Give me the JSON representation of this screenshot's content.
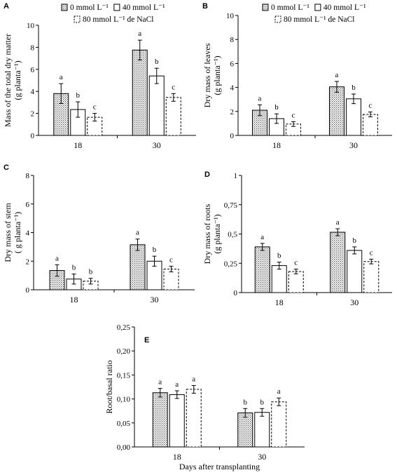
{
  "chart_data": [
    {
      "id": "A",
      "type": "bar",
      "panel_label": "A",
      "ylabel": "Mass of the total dry matter (g planta⁻¹)",
      "ylabel_lines": [
        "Mass of the total dry matter",
        "(g planta⁻¹)"
      ],
      "xlabel": "",
      "ylim": [
        0,
        10
      ],
      "yticks": [
        "0",
        "2",
        "4",
        "6",
        "8",
        "10"
      ],
      "ytick_values": [
        0,
        2,
        4,
        6,
        8,
        10
      ],
      "categories": [
        "18",
        "30"
      ],
      "legend_lines": [
        [
          "0 mmol L⁻¹",
          "40 mmol L⁻¹"
        ],
        [
          "80 mmol L⁻¹ de NaCl"
        ]
      ],
      "series": [
        {
          "name": "0 mmol L⁻¹",
          "values": [
            3.8,
            7.75
          ],
          "errors": [
            0.9,
            0.9
          ],
          "letters": [
            "a",
            "a"
          ]
        },
        {
          "name": "40 mmol L⁻¹",
          "values": [
            2.35,
            5.4
          ],
          "errors": [
            0.7,
            0.7
          ],
          "letters": [
            "b",
            "b"
          ]
        },
        {
          "name": "80 mmol L⁻¹ de NaCl",
          "values": [
            1.65,
            3.45
          ],
          "errors": [
            0.35,
            0.35
          ],
          "letters": [
            "c",
            "c"
          ]
        }
      ]
    },
    {
      "id": "B",
      "type": "bar",
      "panel_label": "B",
      "ylabel": "Dry mass of leaves (g planta⁻¹)",
      "ylabel_lines": [
        "Dry mass of leaves",
        "(g planta⁻¹)"
      ],
      "xlabel": "",
      "ylim": [
        0,
        10
      ],
      "yticks": [
        "0",
        "2",
        "4",
        "6",
        "8",
        "10"
      ],
      "ytick_values": [
        0,
        2,
        4,
        6,
        8,
        10
      ],
      "categories": [
        "18",
        "30"
      ],
      "legend_lines": [
        [
          "0 mmol L⁻¹",
          "40 mmol L⁻¹"
        ],
        [
          "80 mmol L⁻¹ de NaCl"
        ]
      ],
      "series": [
        {
          "name": "0 mmol L⁻¹",
          "values": [
            2.1,
            4.05
          ],
          "errors": [
            0.45,
            0.45
          ],
          "letters": [
            "a",
            "a"
          ]
        },
        {
          "name": "40 mmol L⁻¹",
          "values": [
            1.4,
            3.05
          ],
          "errors": [
            0.4,
            0.4
          ],
          "letters": [
            "b",
            "b"
          ]
        },
        {
          "name": "80 mmol L⁻¹ de NaCl",
          "values": [
            0.95,
            1.75
          ],
          "errors": [
            0.2,
            0.2
          ],
          "letters": [
            "c",
            "c"
          ]
        }
      ]
    },
    {
      "id": "C",
      "type": "bar",
      "panel_label": "C",
      "ylabel": "Dry mass of stem ( g planta⁻¹)",
      "ylabel_lines": [
        "Dry mass of stem",
        "( g planta⁻¹)"
      ],
      "xlabel": "",
      "ylim": [
        0,
        8
      ],
      "yticks": [
        "0",
        "2",
        "4",
        "6",
        "8"
      ],
      "ytick_values": [
        0,
        2,
        4,
        6,
        8
      ],
      "categories": [
        "18",
        "30"
      ],
      "series": [
        {
          "name": "0 mmol L⁻¹",
          "values": [
            1.35,
            3.15
          ],
          "errors": [
            0.4,
            0.4
          ],
          "letters": [
            "a",
            "a"
          ]
        },
        {
          "name": "40 mmol L⁻¹",
          "values": [
            0.75,
            2.0
          ],
          "errors": [
            0.35,
            0.35
          ],
          "letters": [
            "b",
            "b"
          ]
        },
        {
          "name": "80 mmol L⁻¹ de NaCl",
          "values": [
            0.6,
            1.45
          ],
          "errors": [
            0.2,
            0.2
          ],
          "letters": [
            "b",
            "c"
          ]
        }
      ]
    },
    {
      "id": "D",
      "type": "bar",
      "panel_label": "D",
      "ylabel": "Dry mass of roots (g planta⁻¹)",
      "ylabel_lines": [
        "Dry mass of roots",
        "(g planta⁻¹)"
      ],
      "xlabel": "",
      "ylim": [
        0,
        1
      ],
      "yticks": [
        "0",
        "0,25",
        "0,5",
        "0,75",
        "1"
      ],
      "ytick_values": [
        0,
        0.25,
        0.5,
        0.75,
        1
      ],
      "categories": [
        "18",
        "30"
      ],
      "series": [
        {
          "name": "0 mmol L⁻¹",
          "values": [
            0.39,
            0.515
          ],
          "errors": [
            0.03,
            0.03
          ],
          "letters": [
            "a",
            "a"
          ]
        },
        {
          "name": "40 mmol L⁻¹",
          "values": [
            0.23,
            0.36
          ],
          "errors": [
            0.03,
            0.03
          ],
          "letters": [
            "b",
            "b"
          ]
        },
        {
          "name": "80 mmol L⁻¹ de NaCl",
          "values": [
            0.18,
            0.265
          ],
          "errors": [
            0.02,
            0.02
          ],
          "letters": [
            "c",
            "c"
          ]
        }
      ]
    },
    {
      "id": "E",
      "type": "bar",
      "panel_label": "E",
      "ylabel": "Root/basal ratio",
      "ylabel_lines": [
        "Root/basal ratio"
      ],
      "xlabel": "Days after transplanting",
      "ylim": [
        0,
        0.25
      ],
      "yticks": [
        "0,00",
        "0,05",
        "0,10",
        "0,15",
        "0,20",
        "0,25"
      ],
      "ytick_values": [
        0,
        0.05,
        0.1,
        0.15,
        0.2,
        0.25
      ],
      "categories": [
        "18",
        "30"
      ],
      "series": [
        {
          "name": "0 mmol L⁻¹",
          "values": [
            0.113,
            0.071
          ],
          "errors": [
            0.009,
            0.009
          ],
          "letters": [
            "a",
            "b"
          ]
        },
        {
          "name": "40 mmol L⁻¹",
          "values": [
            0.109,
            0.072
          ],
          "errors": [
            0.008,
            0.008
          ],
          "letters": [
            "a",
            "b"
          ]
        },
        {
          "name": "80 mmol L⁻¹ de NaCl",
          "values": [
            0.12,
            0.094
          ],
          "errors": [
            0.008,
            0.008
          ],
          "letters": [
            "a",
            "a"
          ]
        }
      ]
    }
  ]
}
